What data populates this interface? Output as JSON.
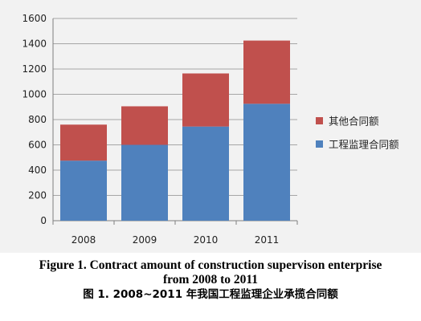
{
  "chart_data": {
    "type": "bar",
    "stacked": true,
    "categories": [
      "2008",
      "2009",
      "2010",
      "2011"
    ],
    "series": [
      {
        "name": "工程监理合同额",
        "color": "#4f81bd",
        "values": [
          475,
          600,
          745,
          925
        ]
      },
      {
        "name": "其他合同额",
        "color": "#c0504d",
        "values": [
          285,
          305,
          420,
          500
        ]
      }
    ],
    "ylim": [
      0,
      1600
    ],
    "yticks": [
      "0",
      "200",
      "400",
      "600",
      "800",
      "1000",
      "1200",
      "1400",
      "1600"
    ],
    "grid": true,
    "legend_position": "right"
  },
  "caption": {
    "english": "Figure 1. Contract amount of construction supervison enterprise from 2008 to 2011",
    "chinese": "图 1. 2008~2011 年我国工程监理企业承揽合同额"
  }
}
